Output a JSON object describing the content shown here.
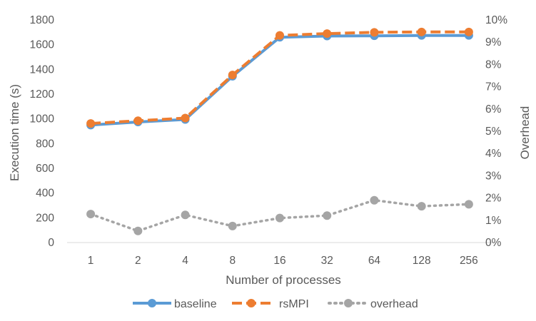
{
  "chart_data": {
    "type": "line",
    "categories": [
      "1",
      "2",
      "4",
      "8",
      "16",
      "32",
      "64",
      "128",
      "256"
    ],
    "xlabel": "Number of processes",
    "ylabel": "Execution time (s)",
    "y2label": "Overhead",
    "ylim": [
      0,
      1800
    ],
    "yticks": [
      "0",
      "200",
      "400",
      "600",
      "800",
      "1000",
      "1200",
      "1400",
      "1600",
      "1800"
    ],
    "y2lim": [
      0,
      10
    ],
    "y2ticks": [
      "0%",
      "1%",
      "2%",
      "3%",
      "4%",
      "5%",
      "6%",
      "7%",
      "8%",
      "9%",
      "10%"
    ],
    "grid": false,
    "legend_position": "bottom",
    "series": [
      {
        "name": "baseline",
        "axis": "left",
        "style": "solid",
        "color": "#5B9BD5",
        "values": [
          950,
          975,
          995,
          1345,
          1660,
          1670,
          1672,
          1675,
          1675
        ]
      },
      {
        "name": "rsMPI",
        "axis": "left",
        "style": "dashed",
        "color": "#ED7D31",
        "values": [
          963,
          985,
          1007,
          1355,
          1675,
          1690,
          1700,
          1703,
          1703
        ]
      },
      {
        "name": "overhead",
        "axis": "right",
        "style": "dotted",
        "color": "#A5A5A5",
        "values": [
          1.28,
          0.52,
          1.24,
          0.74,
          1.1,
          1.21,
          1.9,
          1.63,
          1.72
        ]
      }
    ]
  }
}
